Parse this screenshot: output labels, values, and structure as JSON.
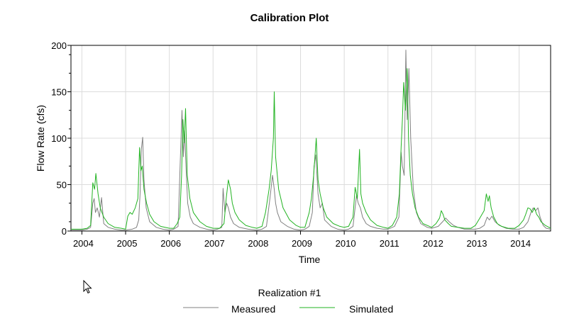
{
  "chart_data": {
    "type": "line",
    "title": "Calibration Plot",
    "xlabel": "Time",
    "ylabel": "Flow Rate (cfs)",
    "xlim": [
      2003.75,
      2014.72
    ],
    "ylim": [
      0,
      200
    ],
    "yticks": [
      0,
      50,
      100,
      150,
      200
    ],
    "xticks": [
      "2004",
      "2005",
      "2006",
      "2007",
      "2008",
      "2009",
      "2010",
      "2011",
      "2012",
      "2013",
      "2014"
    ],
    "grid": true,
    "legend": {
      "title": "Realization #1",
      "placement": "bottom-center"
    },
    "series": [
      {
        "name": "Measured",
        "color": "#808080",
        "x": [
          2003.75,
          2004.0,
          2004.12,
          2004.2,
          2004.25,
          2004.28,
          2004.31,
          2004.35,
          2004.4,
          2004.45,
          2004.5,
          2004.6,
          2004.75,
          2004.9,
          2005.0,
          2005.15,
          2005.25,
          2005.3,
          2005.33,
          2005.36,
          2005.39,
          2005.42,
          2005.47,
          2005.55,
          2005.7,
          2005.85,
          2006.0,
          2006.1,
          2006.2,
          2006.26,
          2006.29,
          2006.32,
          2006.35,
          2006.38,
          2006.42,
          2006.48,
          2006.55,
          2006.7,
          2006.85,
          2007.0,
          2007.1,
          2007.2,
          2007.23,
          2007.27,
          2007.31,
          2007.35,
          2007.4,
          2007.47,
          2007.6,
          2007.8,
          2008.0,
          2008.12,
          2008.22,
          2008.3,
          2008.36,
          2008.4,
          2008.43,
          2008.47,
          2008.55,
          2008.7,
          2008.85,
          2009.0,
          2009.1,
          2009.2,
          2009.27,
          2009.31,
          2009.35,
          2009.4,
          2009.45,
          2009.5,
          2009.55,
          2009.7,
          2009.85,
          2010.0,
          2010.1,
          2010.2,
          2010.28,
          2010.32,
          2010.37,
          2010.42,
          2010.5,
          2010.6,
          2010.75,
          2010.9,
          2011.0,
          2011.15,
          2011.25,
          2011.3,
          2011.33,
          2011.37,
          2011.41,
          2011.44,
          2011.48,
          2011.52,
          2011.58,
          2011.65,
          2011.75,
          2011.9,
          2012.0,
          2012.15,
          2012.25,
          2012.32,
          2012.4,
          2012.5,
          2012.6,
          2012.75,
          2012.9,
          2013.0,
          2013.1,
          2013.2,
          2013.27,
          2013.32,
          2013.38,
          2013.45,
          2013.55,
          2013.7,
          2013.85,
          2014.0,
          2014.1,
          2014.2,
          2014.27,
          2014.32,
          2014.38,
          2014.43,
          2014.48,
          2014.55,
          2014.62,
          2014.72
        ],
        "y": [
          1,
          1,
          2,
          4,
          30,
          35,
          20,
          25,
          15,
          36,
          8,
          4,
          2,
          1,
          1,
          2,
          4,
          12,
          40,
          88,
          101,
          55,
          25,
          10,
          4,
          2,
          1,
          2,
          5,
          90,
          130,
          80,
          108,
          70,
          30,
          15,
          8,
          4,
          2,
          1,
          2,
          4,
          46,
          20,
          30,
          25,
          15,
          8,
          4,
          2,
          1,
          2,
          5,
          35,
          60,
          45,
          30,
          20,
          10,
          5,
          2,
          1,
          2,
          5,
          20,
          70,
          82,
          40,
          25,
          30,
          12,
          5,
          2,
          1,
          2,
          5,
          38,
          30,
          25,
          15,
          8,
          5,
          3,
          2,
          2,
          5,
          15,
          85,
          70,
          60,
          195,
          120,
          175,
          100,
          45,
          20,
          8,
          4,
          3,
          5,
          10,
          14,
          10,
          6,
          4,
          2,
          2,
          2,
          3,
          6,
          15,
          12,
          16,
          10,
          6,
          3,
          2,
          2,
          4,
          10,
          20,
          25,
          22,
          25,
          15,
          6,
          3,
          2
        ]
      },
      {
        "name": "Simulated",
        "color": "#22b322",
        "x": [
          2003.75,
          2004.0,
          2004.12,
          2004.2,
          2004.25,
          2004.29,
          2004.32,
          2004.37,
          2004.42,
          2004.5,
          2004.6,
          2004.75,
          2004.9,
          2005.0,
          2005.05,
          2005.1,
          2005.15,
          2005.22,
          2005.28,
          2005.32,
          2005.35,
          2005.38,
          2005.42,
          2005.48,
          2005.55,
          2005.65,
          2005.8,
          2006.0,
          2006.1,
          2006.18,
          2006.24,
          2006.28,
          2006.31,
          2006.34,
          2006.37,
          2006.41,
          2006.47,
          2006.55,
          2006.7,
          2006.85,
          2007.0,
          2007.15,
          2007.25,
          2007.3,
          2007.35,
          2007.4,
          2007.44,
          2007.5,
          2007.6,
          2007.75,
          2007.9,
          2008.0,
          2008.12,
          2008.2,
          2008.28,
          2008.33,
          2008.38,
          2008.4,
          2008.43,
          2008.5,
          2008.6,
          2008.75,
          2008.9,
          2009.0,
          2009.1,
          2009.2,
          2009.25,
          2009.3,
          2009.36,
          2009.4,
          2009.45,
          2009.52,
          2009.6,
          2009.75,
          2009.9,
          2010.0,
          2010.1,
          2010.2,
          2010.25,
          2010.3,
          2010.35,
          2010.38,
          2010.42,
          2010.5,
          2010.6,
          2010.75,
          2010.9,
          2011.0,
          2011.1,
          2011.2,
          2011.26,
          2011.3,
          2011.33,
          2011.36,
          2011.4,
          2011.44,
          2011.47,
          2011.51,
          2011.56,
          2011.62,
          2011.7,
          2011.8,
          2011.95,
          2012.0,
          2012.1,
          2012.18,
          2012.22,
          2012.26,
          2012.3,
          2012.38,
          2012.45,
          2012.6,
          2012.75,
          2012.9,
          2013.0,
          2013.1,
          2013.2,
          2013.25,
          2013.29,
          2013.32,
          2013.36,
          2013.42,
          2013.5,
          2013.6,
          2013.75,
          2013.9,
          2014.0,
          2014.1,
          2014.15,
          2014.2,
          2014.25,
          2014.3,
          2014.35,
          2014.4,
          2014.45,
          2014.5,
          2014.6,
          2014.72
        ],
        "y": [
          2,
          2,
          3,
          6,
          52,
          45,
          62,
          40,
          25,
          15,
          8,
          4,
          3,
          2,
          16,
          20,
          18,
          25,
          35,
          90,
          65,
          70,
          45,
          30,
          18,
          10,
          5,
          3,
          3,
          8,
          15,
          60,
          120,
          95,
          132,
          60,
          35,
          20,
          10,
          5,
          3,
          3,
          8,
          35,
          55,
          45,
          30,
          20,
          12,
          6,
          4,
          3,
          5,
          20,
          45,
          65,
          100,
          150,
          80,
          45,
          25,
          12,
          6,
          4,
          4,
          20,
          35,
          60,
          100,
          55,
          40,
          25,
          15,
          8,
          5,
          4,
          5,
          15,
          47,
          35,
          88,
          40,
          30,
          20,
          12,
          6,
          4,
          3,
          6,
          15,
          40,
          90,
          120,
          160,
          130,
          175,
          100,
          60,
          40,
          25,
          15,
          8,
          5,
          4,
          8,
          14,
          22,
          18,
          12,
          8,
          5,
          4,
          3,
          3,
          6,
          14,
          22,
          40,
          32,
          38,
          25,
          15,
          8,
          5,
          3,
          3,
          6,
          12,
          18,
          25,
          24,
          20,
          25,
          18,
          15,
          10,
          6,
          3
        ]
      }
    ]
  }
}
